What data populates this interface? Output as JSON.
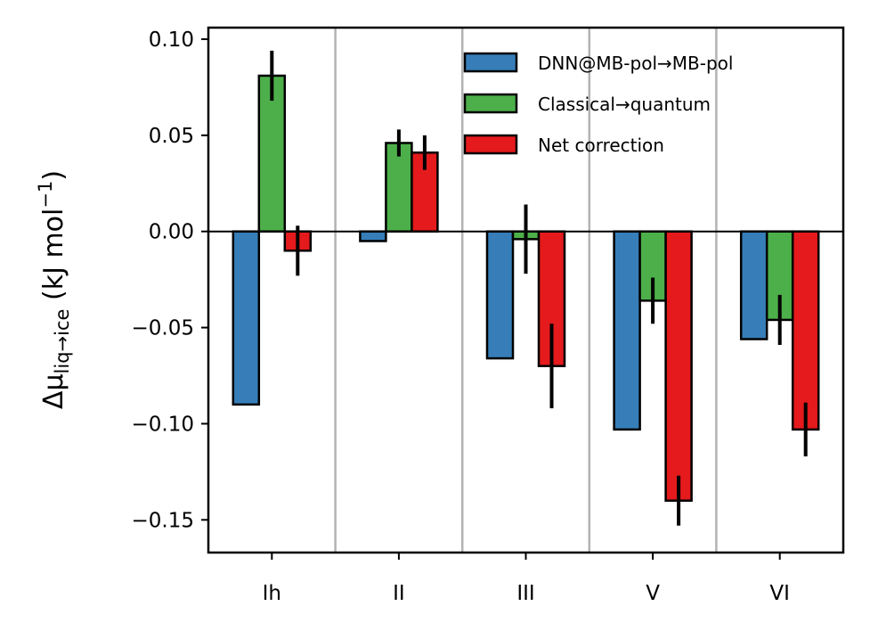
{
  "chart_data": {
    "type": "bar",
    "title": "",
    "xlabel": "",
    "ylabel_main": "Δμ",
    "ylabel_sub": "liq→ice",
    "ylabel_units": " (kJ mol",
    "ylabel_exp": "−1",
    "ylabel_close": ")",
    "categories": [
      "Ih",
      "II",
      "III",
      "V",
      "VI"
    ],
    "ylim": [
      -0.167,
      0.106
    ],
    "yticks": [
      0.1,
      0.05,
      0.0,
      -0.05,
      -0.1,
      -0.15
    ],
    "ytick_labels": [
      "0.10",
      "0.05",
      "0.00",
      "−0.05",
      "−0.10",
      "−0.15"
    ],
    "grid": "vertical separators between categories",
    "zero_line": true,
    "legend_position": "upper-right",
    "series": [
      {
        "name": "DNN@MB-pol→MB-pol",
        "color": "#377eb8",
        "values": [
          -0.09,
          -0.005,
          -0.066,
          -0.103,
          -0.056
        ],
        "errors": [
          null,
          null,
          null,
          null,
          null
        ]
      },
      {
        "name": "Classical→quantum",
        "color": "#4daf4a",
        "values": [
          0.081,
          0.046,
          -0.004,
          -0.036,
          -0.046
        ],
        "errors": [
          0.013,
          0.007,
          0.018,
          0.012,
          0.013
        ]
      },
      {
        "name": "Net correction",
        "color": "#e41a1c",
        "values": [
          -0.01,
          0.041,
          -0.07,
          -0.14,
          -0.103
        ],
        "errors": [
          0.013,
          0.009,
          0.022,
          0.013,
          0.014
        ]
      }
    ]
  }
}
